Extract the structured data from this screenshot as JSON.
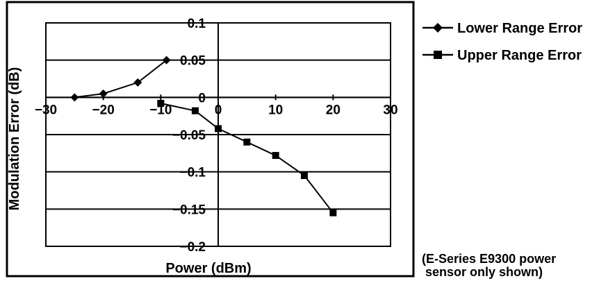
{
  "chart_data": {
    "type": "line",
    "xlabel": "Power (dBm)",
    "ylabel": "Modulation Error (dB)",
    "xlim": [
      -30,
      30
    ],
    "ylim": [
      -0.2,
      0.1
    ],
    "x_ticks": [
      -30,
      -20,
      -10,
      0,
      10,
      20,
      30
    ],
    "x_tick_labels": [
      "−30",
      "−20",
      "−10",
      "0",
      "10",
      "20",
      "30"
    ],
    "y_ticks": [
      0.1,
      0.05,
      0,
      -0.05,
      -0.1,
      -0.15,
      -0.2
    ],
    "y_tick_labels": [
      "0.1",
      "0.05",
      "0",
      "−0.05",
      "−0.1",
      "−0.15",
      "−0.2"
    ],
    "gridlines": "horizontal",
    "legend_position": "right",
    "series": [
      {
        "name": "Lower Range Error",
        "marker": "diamond",
        "x": [
          -25,
          -20,
          -14,
          -9
        ],
        "y": [
          0,
          0.005,
          0.02,
          0.05
        ]
      },
      {
        "name": "Upper Range Error",
        "marker": "square",
        "x": [
          -10,
          -4,
          0,
          5,
          10,
          15,
          20
        ],
        "y": [
          -0.008,
          -0.018,
          -0.042,
          -0.06,
          -0.078,
          -0.105,
          -0.155
        ]
      }
    ],
    "annotation": [
      "(E-Series E9300 power",
      " sensor only shown)"
    ]
  }
}
